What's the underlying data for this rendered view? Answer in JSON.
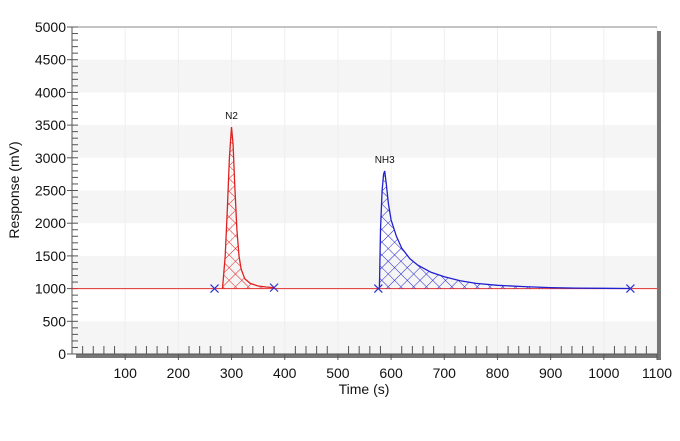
{
  "chart_data": {
    "type": "line",
    "title": "",
    "xlabel": "Time (s)",
    "ylabel": "Response (mV)",
    "xlim": [
      0,
      1100
    ],
    "ylim": [
      0,
      5000
    ],
    "x_ticks": [
      100,
      200,
      300,
      400,
      500,
      600,
      700,
      800,
      900,
      1000,
      1100
    ],
    "y_ticks": [
      0,
      500,
      1000,
      1500,
      2000,
      2500,
      3000,
      3500,
      4000,
      4500,
      5000
    ],
    "grid": true,
    "baseline": {
      "value": 1000,
      "color": "#e03030"
    },
    "band_color": "#f5f5f5",
    "peaks": [
      {
        "label": "N2",
        "color": "#e02020",
        "apex": [
          300,
          3470
        ],
        "markers": [
          268,
          380
        ],
        "points": [
          [
            283,
            1000
          ],
          [
            288,
            1500
          ],
          [
            292,
            2200
          ],
          [
            296,
            3000
          ],
          [
            300,
            3470
          ],
          [
            303,
            3200
          ],
          [
            306,
            2600
          ],
          [
            310,
            1900
          ],
          [
            314,
            1500
          ],
          [
            318,
            1300
          ],
          [
            325,
            1150
          ],
          [
            335,
            1080
          ],
          [
            350,
            1040
          ],
          [
            365,
            1025
          ],
          [
            380,
            1015
          ]
        ]
      },
      {
        "label": "NH3",
        "color": "#2020d0",
        "apex": [
          588,
          2800
        ],
        "markers": [
          576,
          1050
        ],
        "points": [
          [
            578,
            1000
          ],
          [
            580,
            1900
          ],
          [
            583,
            2500
          ],
          [
            586,
            2750
          ],
          [
            588,
            2800
          ],
          [
            591,
            2600
          ],
          [
            595,
            2300
          ],
          [
            600,
            2050
          ],
          [
            610,
            1800
          ],
          [
            620,
            1620
          ],
          [
            635,
            1460
          ],
          [
            650,
            1360
          ],
          [
            675,
            1250
          ],
          [
            700,
            1180
          ],
          [
            730,
            1120
          ],
          [
            760,
            1080
          ],
          [
            800,
            1050
          ],
          [
            850,
            1030
          ],
          [
            900,
            1015
          ],
          [
            950,
            1008
          ],
          [
            1000,
            1004
          ],
          [
            1050,
            1002
          ]
        ]
      }
    ]
  }
}
